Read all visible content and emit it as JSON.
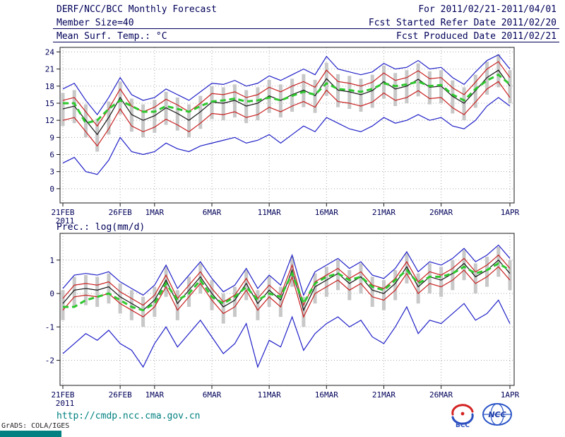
{
  "header": {
    "title": "DERF/NCC/BCC Monthly Forecast",
    "member_size": "Member Size=40",
    "for_range": "For 2011/02/21-2011/04/01",
    "fcst_started": "Fcst Started Refer Date 2011/02/20",
    "fcst_produced": "Fcst Produced Date 2011/02/21"
  },
  "footer": {
    "url": "http://cmdp.ncc.cma.gov.cn",
    "grads": "GrADS: COLA/IGES",
    "logo_bcc": "BCC",
    "logo_ncc": "NCC"
  },
  "colors": {
    "text": "#00005a",
    "axis": "#1a1a1a",
    "grid": "#a8a8a8",
    "bar": "#c8c8c8",
    "blue": "#2020c8",
    "red": "#c82020",
    "black": "#141414",
    "green": "#2ec82e",
    "url": "#008080",
    "teal_bar": "#008080"
  },
  "chart_data": [
    {
      "id": "temperature",
      "type": "line",
      "title": "Mean Surf. Temp.: °C",
      "n_points": 40,
      "year_label": "2011",
      "x_ticks": [
        {
          "index": 0,
          "label": "21FEB"
        },
        {
          "index": 5,
          "label": "26FEB"
        },
        {
          "index": 8,
          "label": "1MAR"
        },
        {
          "index": 13,
          "label": "6MAR"
        },
        {
          "index": 18,
          "label": "11MAR"
        },
        {
          "index": 23,
          "label": "16MAR"
        },
        {
          "index": 28,
          "label": "21MAR"
        },
        {
          "index": 33,
          "label": "26MAR"
        },
        {
          "index": 39,
          "label": "1APR"
        }
      ],
      "y_ticks": [
        0,
        3,
        6,
        9,
        12,
        15,
        18,
        21,
        24
      ],
      "y_range": [
        -2.5,
        24.8
      ],
      "series": [
        {
          "name": "ensemble-spread",
          "type": "bar",
          "color": "#c8c8c8",
          "low": [
            11.0,
            11.5,
            9.0,
            6.5,
            9.5,
            13.0,
            10.0,
            9.0,
            9.8,
            11.2,
            10.2,
            9.0,
            10.5,
            12.2,
            12.0,
            12.5,
            11.5,
            12.0,
            13.3,
            12.5,
            13.5,
            14.3,
            13.3,
            16.3,
            14.3,
            14.0,
            13.5,
            14.2,
            15.8,
            14.5,
            15.0,
            16.2,
            14.8,
            15.0,
            13.2,
            12.0,
            14.2,
            16.5,
            17.8,
            15.0
          ],
          "high": [
            16.8,
            17.3,
            14.8,
            12.3,
            15.3,
            18.8,
            15.8,
            14.8,
            15.6,
            17.0,
            16.0,
            14.8,
            16.3,
            18.0,
            17.8,
            18.3,
            17.3,
            17.8,
            19.1,
            18.3,
            19.3,
            20.1,
            19.1,
            22.1,
            20.1,
            19.8,
            19.3,
            20.0,
            21.6,
            20.3,
            20.8,
            22.0,
            20.6,
            20.8,
            19.0,
            17.8,
            20.0,
            22.3,
            23.6,
            20.8
          ]
        },
        {
          "name": "ensemble-max",
          "type": "line",
          "color": "#2020c8",
          "values": [
            17.5,
            18.5,
            15.5,
            13.0,
            16.0,
            19.5,
            16.5,
            15.5,
            16.0,
            17.5,
            16.5,
            15.5,
            17.0,
            18.5,
            18.3,
            19.0,
            18.0,
            18.5,
            19.8,
            19.0,
            20.0,
            21.0,
            20.0,
            23.2,
            21.0,
            20.5,
            20.0,
            20.5,
            22.0,
            21.0,
            21.3,
            22.5,
            21.0,
            21.3,
            19.5,
            18.3,
            20.5,
            22.5,
            23.5,
            21.0
          ]
        },
        {
          "name": "ensemble-min",
          "type": "line",
          "color": "#2020c8",
          "values": [
            4.5,
            5.5,
            3.0,
            2.5,
            5.0,
            9.0,
            6.5,
            6.0,
            6.5,
            8.0,
            7.0,
            6.5,
            7.5,
            8.0,
            8.5,
            9.0,
            8.0,
            8.5,
            9.5,
            8.0,
            9.5,
            11.0,
            10.0,
            12.5,
            11.5,
            10.5,
            10.0,
            11.0,
            12.5,
            11.5,
            12.0,
            13.0,
            12.0,
            12.5,
            11.0,
            10.5,
            12.0,
            14.5,
            16.0,
            14.5
          ]
        },
        {
          "name": "upper-quartile",
          "type": "line",
          "color": "#c82020",
          "values": [
            15.5,
            16.0,
            13.5,
            11.0,
            14.0,
            17.5,
            14.5,
            13.5,
            14.3,
            15.7,
            14.7,
            13.5,
            15.0,
            16.7,
            16.5,
            17.0,
            16.0,
            16.5,
            17.8,
            17.0,
            18.0,
            18.8,
            17.8,
            20.8,
            18.8,
            18.5,
            18.0,
            18.7,
            20.3,
            19.0,
            19.5,
            20.7,
            19.3,
            19.5,
            17.7,
            16.5,
            18.7,
            21.0,
            22.3,
            19.5
          ]
        },
        {
          "name": "lower-quartile",
          "type": "line",
          "color": "#c82020",
          "values": [
            12.0,
            12.5,
            10.0,
            7.5,
            10.5,
            14.0,
            11.0,
            10.0,
            10.8,
            12.2,
            11.2,
            10.0,
            11.5,
            13.2,
            13.0,
            13.5,
            12.5,
            13.0,
            14.3,
            13.5,
            14.5,
            15.3,
            14.3,
            17.3,
            15.3,
            15.0,
            14.5,
            15.2,
            16.8,
            15.5,
            16.0,
            17.2,
            15.8,
            16.0,
            14.2,
            13.0,
            15.2,
            17.5,
            18.8,
            16.0
          ]
        },
        {
          "name": "ensemble-mean",
          "type": "line",
          "color": "#141414",
          "values": [
            14.0,
            14.5,
            12.0,
            9.5,
            12.5,
            16.0,
            13.0,
            12.0,
            12.8,
            14.2,
            13.2,
            12.0,
            13.5,
            15.2,
            15.0,
            15.5,
            14.5,
            15.0,
            16.3,
            15.5,
            16.5,
            17.3,
            16.3,
            19.3,
            17.3,
            17.0,
            16.5,
            17.2,
            18.8,
            17.5,
            18.0,
            19.2,
            17.8,
            18.0,
            16.2,
            15.0,
            17.2,
            19.5,
            20.8,
            18.0
          ]
        },
        {
          "name": "highlight-dashed",
          "type": "dash",
          "color": "#2ec82e",
          "values": [
            15.0,
            15.0,
            11.5,
            12.0,
            14.0,
            15.5,
            14.5,
            13.5,
            13.5,
            14.5,
            14.0,
            13.5,
            14.5,
            15.3,
            15.5,
            15.8,
            15.3,
            15.5,
            16.0,
            15.5,
            16.3,
            17.0,
            16.5,
            18.5,
            17.5,
            17.3,
            17.0,
            17.5,
            18.5,
            18.0,
            18.3,
            18.8,
            18.0,
            18.2,
            16.5,
            15.5,
            17.5,
            19.0,
            20.0,
            18.3
          ]
        }
      ]
    },
    {
      "id": "precipitation",
      "type": "line",
      "title": "Prec.: log(mm/d)",
      "n_points": 40,
      "year_label": "2011",
      "x_ticks": [
        {
          "index": 0,
          "label": "21FEB"
        },
        {
          "index": 5,
          "label": "26FEB"
        },
        {
          "index": 8,
          "label": "1MAR"
        },
        {
          "index": 13,
          "label": "6MAR"
        },
        {
          "index": 18,
          "label": "11MAR"
        },
        {
          "index": 23,
          "label": "16MAR"
        },
        {
          "index": 28,
          "label": "21MAR"
        },
        {
          "index": 33,
          "label": "26MAR"
        },
        {
          "index": 39,
          "label": "1APR"
        }
      ],
      "y_ticks": [
        -2,
        -1,
        0,
        1
      ],
      "y_range": [
        -2.75,
        1.8
      ],
      "series": [
        {
          "name": "ensemble-spread",
          "type": "bar",
          "color": "#c8c8c8",
          "low": [
            -0.8,
            -0.4,
            -0.35,
            -0.4,
            -0.3,
            -0.6,
            -0.8,
            -1.0,
            -0.7,
            -0.1,
            -0.8,
            -0.4,
            0.0,
            -0.5,
            -0.9,
            -0.7,
            -0.2,
            -0.8,
            -0.4,
            -0.7,
            0.2,
            -1.0,
            -0.3,
            -0.1,
            0.1,
            -0.2,
            0.0,
            -0.4,
            -0.5,
            -0.2,
            0.3,
            -0.3,
            0.0,
            -0.1,
            0.1,
            0.4,
            0.0,
            0.2,
            0.5,
            0.1
          ],
          "high": [
            0.1,
            0.5,
            0.55,
            0.5,
            0.6,
            0.3,
            0.1,
            -0.1,
            0.2,
            0.8,
            0.1,
            0.5,
            0.9,
            0.4,
            0.0,
            0.2,
            0.7,
            0.1,
            0.5,
            0.2,
            1.1,
            -0.1,
            0.6,
            0.8,
            1.0,
            0.7,
            0.9,
            0.5,
            0.4,
            0.7,
            1.2,
            0.6,
            0.9,
            0.8,
            1.0,
            1.3,
            0.9,
            1.1,
            1.4,
            1.0
          ]
        },
        {
          "name": "ensemble-max",
          "type": "line",
          "color": "#2020c8",
          "values": [
            0.15,
            0.55,
            0.6,
            0.55,
            0.65,
            0.35,
            0.15,
            -0.05,
            0.25,
            0.85,
            0.15,
            0.55,
            0.95,
            0.45,
            0.05,
            0.25,
            0.75,
            0.15,
            0.55,
            0.25,
            1.15,
            -0.05,
            0.65,
            0.85,
            1.05,
            0.75,
            0.95,
            0.55,
            0.45,
            0.75,
            1.25,
            0.65,
            0.95,
            0.85,
            1.05,
            1.35,
            0.95,
            1.15,
            1.45,
            1.05
          ]
        },
        {
          "name": "ensemble-min",
          "type": "line",
          "color": "#2020c8",
          "values": [
            -1.8,
            -1.5,
            -1.2,
            -1.4,
            -1.1,
            -1.5,
            -1.7,
            -2.2,
            -1.5,
            -1.0,
            -1.6,
            -1.2,
            -0.8,
            -1.3,
            -1.8,
            -1.5,
            -0.9,
            -2.2,
            -1.4,
            -1.6,
            -0.7,
            -1.7,
            -1.2,
            -0.9,
            -0.7,
            -1.0,
            -0.8,
            -1.3,
            -1.5,
            -1.0,
            -0.4,
            -1.2,
            -0.8,
            -0.9,
            -0.6,
            -0.3,
            -0.8,
            -0.6,
            -0.2,
            -0.9
          ]
        },
        {
          "name": "upper-quartile",
          "type": "line",
          "color": "#c82020",
          "values": [
            -0.15,
            0.25,
            0.3,
            0.25,
            0.35,
            0.05,
            -0.15,
            -0.35,
            -0.05,
            0.55,
            -0.15,
            0.25,
            0.65,
            0.15,
            -0.25,
            -0.05,
            0.45,
            -0.15,
            0.25,
            -0.05,
            0.85,
            -0.35,
            0.35,
            0.55,
            0.75,
            0.45,
            0.65,
            0.25,
            0.15,
            0.45,
            0.95,
            0.35,
            0.65,
            0.55,
            0.75,
            1.05,
            0.65,
            0.85,
            1.15,
            0.75
          ]
        },
        {
          "name": "lower-quartile",
          "type": "line",
          "color": "#c82020",
          "values": [
            -0.5,
            -0.1,
            -0.05,
            -0.1,
            0.0,
            -0.3,
            -0.5,
            -0.7,
            -0.4,
            0.2,
            -0.5,
            -0.1,
            0.3,
            -0.2,
            -0.6,
            -0.4,
            0.1,
            -0.5,
            -0.1,
            -0.4,
            0.5,
            -0.7,
            0.0,
            0.2,
            0.4,
            0.1,
            0.3,
            -0.1,
            -0.2,
            0.1,
            0.6,
            0.0,
            0.3,
            0.2,
            0.4,
            0.7,
            0.3,
            0.5,
            0.8,
            0.4
          ]
        },
        {
          "name": "ensemble-mean",
          "type": "line",
          "color": "#141414",
          "values": [
            -0.3,
            0.1,
            0.15,
            0.1,
            0.2,
            -0.1,
            -0.3,
            -0.5,
            -0.2,
            0.4,
            -0.3,
            0.1,
            0.5,
            0.0,
            -0.4,
            -0.2,
            0.3,
            -0.3,
            0.1,
            -0.2,
            0.7,
            -0.5,
            0.2,
            0.4,
            0.6,
            0.3,
            0.5,
            0.1,
            0.0,
            0.3,
            0.8,
            0.2,
            0.5,
            0.4,
            0.6,
            0.9,
            0.5,
            0.7,
            1.0,
            0.6
          ]
        },
        {
          "name": "highlight-dashed",
          "type": "dash",
          "color": "#2ec82e",
          "values": [
            -0.4,
            -0.4,
            -0.2,
            -0.1,
            0.0,
            -0.2,
            -0.4,
            -0.5,
            -0.3,
            0.3,
            -0.2,
            0.0,
            0.4,
            -0.1,
            -0.3,
            -0.1,
            0.2,
            -0.2,
            0.0,
            -0.1,
            0.6,
            -0.3,
            0.3,
            0.5,
            0.6,
            0.4,
            0.5,
            0.2,
            0.1,
            0.4,
            0.7,
            0.3,
            0.5,
            0.5,
            0.6,
            0.8,
            0.6,
            0.7,
            0.9,
            0.7
          ]
        }
      ]
    }
  ]
}
